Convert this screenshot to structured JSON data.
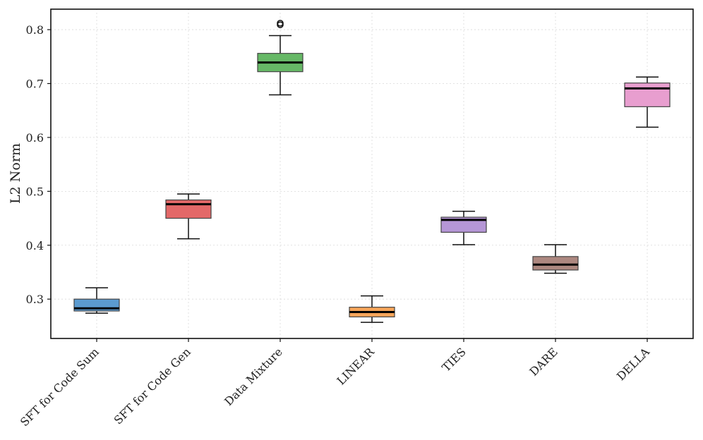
{
  "chart_data": {
    "type": "box",
    "title": "",
    "xlabel": "",
    "ylabel": "L2 Norm",
    "ylim": [
      0.227,
      0.838
    ],
    "yticks": [
      0.3,
      0.4,
      0.5,
      0.6,
      0.7,
      0.8
    ],
    "ytick_labels": [
      "0.3",
      "0.4",
      "0.5",
      "0.6",
      "0.7",
      "0.8"
    ],
    "grid": true,
    "categories": [
      "SFT for Code Sum",
      "SFT for Code Gen",
      "Data Mixture",
      "LINEAR",
      "TIES",
      "DARE",
      "DELLA"
    ],
    "boxes": [
      {
        "name": "SFT for Code Sum",
        "whisker_low": 0.274,
        "q1": 0.278,
        "median": 0.283,
        "q3": 0.3,
        "whisker_high": 0.321,
        "outliers": [],
        "color": "#5b9bd0"
      },
      {
        "name": "SFT for Code Gen",
        "whisker_low": 0.412,
        "q1": 0.45,
        "median": 0.476,
        "q3": 0.484,
        "whisker_high": 0.495,
        "outliers": [],
        "color": "#e36868"
      },
      {
        "name": "Data Mixture",
        "whisker_low": 0.679,
        "q1": 0.722,
        "median": 0.739,
        "q3": 0.756,
        "whisker_high": 0.789,
        "outliers": [
          0.809,
          0.812
        ],
        "color": "#66b866"
      },
      {
        "name": "LINEAR",
        "whisker_low": 0.257,
        "q1": 0.267,
        "median": 0.276,
        "q3": 0.285,
        "whisker_high": 0.306,
        "outliers": [],
        "color": "#f6a55a"
      },
      {
        "name": "TIES",
        "whisker_low": 0.401,
        "q1": 0.424,
        "median": 0.447,
        "q3": 0.452,
        "whisker_high": 0.463,
        "outliers": [],
        "color": "#b596d6"
      },
      {
        "name": "DARE",
        "whisker_low": 0.348,
        "q1": 0.354,
        "median": 0.364,
        "q3": 0.379,
        "whisker_high": 0.401,
        "outliers": [],
        "color": "#ad8880"
      },
      {
        "name": "DELLA",
        "whisker_low": 0.619,
        "q1": 0.657,
        "median": 0.691,
        "q3": 0.701,
        "whisker_high": 0.712,
        "outliers": [],
        "color": "#e89ecf"
      }
    ]
  }
}
